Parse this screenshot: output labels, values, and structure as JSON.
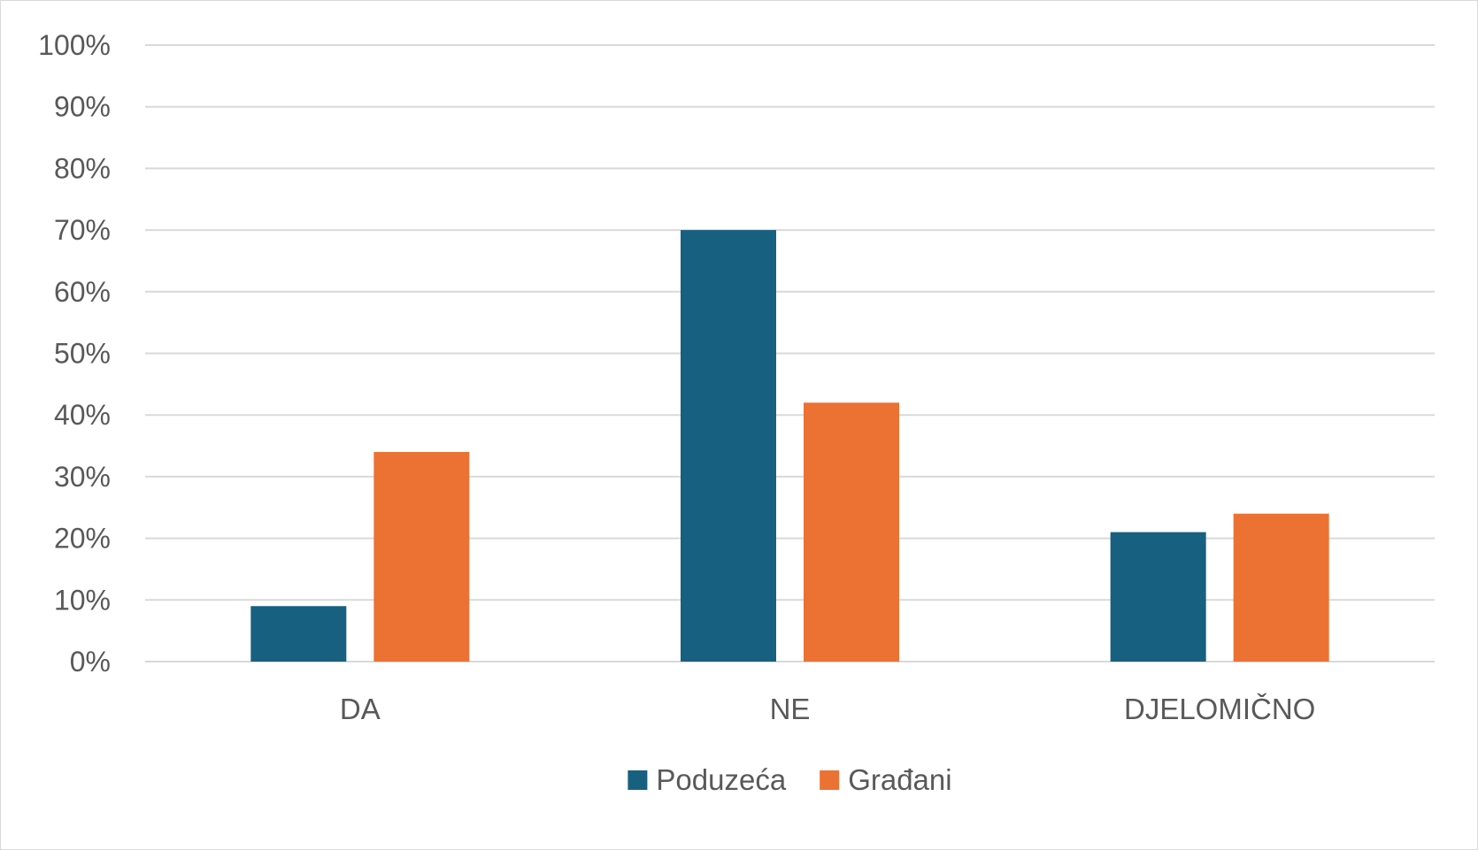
{
  "chart_data": {
    "type": "bar",
    "categories": [
      "DA",
      "NE",
      "DJELOMIČNO"
    ],
    "series": [
      {
        "name": "Poduzeća",
        "color": "#17607f",
        "values": [
          9,
          70,
          21
        ]
      },
      {
        "name": "Građani",
        "color": "#eb7233",
        "values": [
          34,
          42,
          24
        ]
      }
    ],
    "ylim": [
      0,
      100
    ],
    "yticks": [
      "0%",
      "10%",
      "20%",
      "30%",
      "40%",
      "50%",
      "60%",
      "70%",
      "80%",
      "90%",
      "100%"
    ],
    "value_format": "percent",
    "grid": true,
    "legend_position": "bottom",
    "xlabel": "",
    "ylabel": ""
  }
}
